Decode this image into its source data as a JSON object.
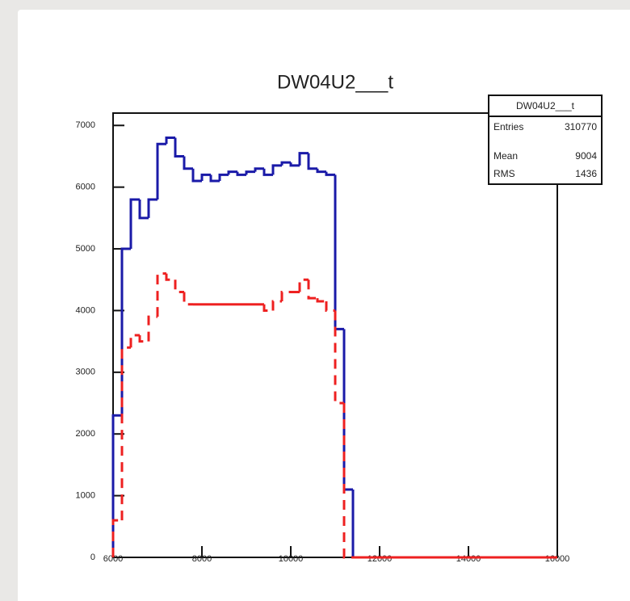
{
  "chart_data": {
    "type": "histogram",
    "title": "DW04U2___t",
    "bins": [
      6000,
      6200,
      6400,
      6600,
      6800,
      7000,
      7200,
      7400,
      7600,
      7800,
      8000,
      8200,
      8400,
      8600,
      8800,
      9000,
      9200,
      9400,
      9600,
      9800,
      10000,
      10200,
      10400,
      10600,
      10800,
      11000,
      11200,
      11400,
      11600,
      11800,
      12000,
      12200,
      12400,
      12600,
      12800,
      13000,
      13200,
      13400,
      13600,
      13800,
      14000,
      14200,
      14400,
      14600,
      14800,
      15000,
      15200,
      15400,
      15600,
      15800,
      16000
    ],
    "series": [
      {
        "color": "#1a1aa8",
        "dashed": false,
        "values": [
          2300,
          5000,
          5800,
          5500,
          5800,
          6700,
          6800,
          6500,
          6300,
          6100,
          6200,
          6100,
          6200,
          6250,
          6200,
          6250,
          6300,
          6200,
          6350,
          6400,
          6350,
          6550,
          6300,
          6250,
          6200,
          3700,
          1100,
          0,
          0,
          0,
          0,
          0,
          0,
          0,
          0,
          0,
          0,
          0,
          0,
          0,
          0,
          0,
          0,
          0,
          0,
          0,
          0,
          0,
          0,
          0
        ]
      },
      {
        "color": "#ee2020",
        "dashed": true,
        "values": [
          600,
          3400,
          3600,
          3500,
          3900,
          4600,
          4500,
          4300,
          4100,
          4100,
          4100,
          4100,
          4100,
          4100,
          4100,
          4100,
          4100,
          4000,
          4150,
          4300,
          4300,
          4500,
          4200,
          4150,
          4000,
          2500,
          0,
          0,
          0,
          0,
          0,
          0,
          0,
          0,
          0,
          0,
          0,
          0,
          0,
          0,
          0,
          0,
          0,
          0,
          0,
          0,
          0,
          0,
          0,
          0
        ]
      }
    ],
    "xlim": [
      6000,
      16000
    ],
    "xticks": [
      6000,
      8000,
      10000,
      12000,
      14000,
      16000
    ],
    "ylim": [
      0,
      7200
    ],
    "yticks": [
      0,
      1000,
      2000,
      3000,
      4000,
      5000,
      6000,
      7000
    ],
    "stats": {
      "title": "DW04U2___t",
      "rows": [
        [
          "Entries",
          "310770"
        ],
        [
          "Mean",
          "9004"
        ],
        [
          "RMS",
          "1436"
        ]
      ]
    }
  }
}
